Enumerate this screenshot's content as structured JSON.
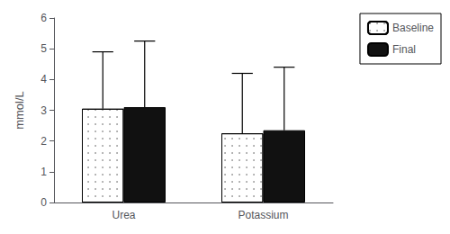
{
  "chart_data": {
    "type": "bar",
    "categories": [
      "Urea",
      "Potassium"
    ],
    "series": [
      {
        "name": "Baseline",
        "color": "#ffffff",
        "values": [
          3.05,
          2.25
        ],
        "error_upper": [
          1.85,
          1.95
        ]
      },
      {
        "name": "Final",
        "color": "#111111",
        "values": [
          3.1,
          2.35
        ],
        "error_upper": [
          2.15,
          2.05
        ]
      }
    ],
    "ylabel": "mmol/L",
    "ylim": [
      0,
      6
    ],
    "yticks": [
      0,
      1,
      2,
      3,
      4,
      5,
      6
    ],
    "grid": false,
    "legend": "upper right"
  }
}
